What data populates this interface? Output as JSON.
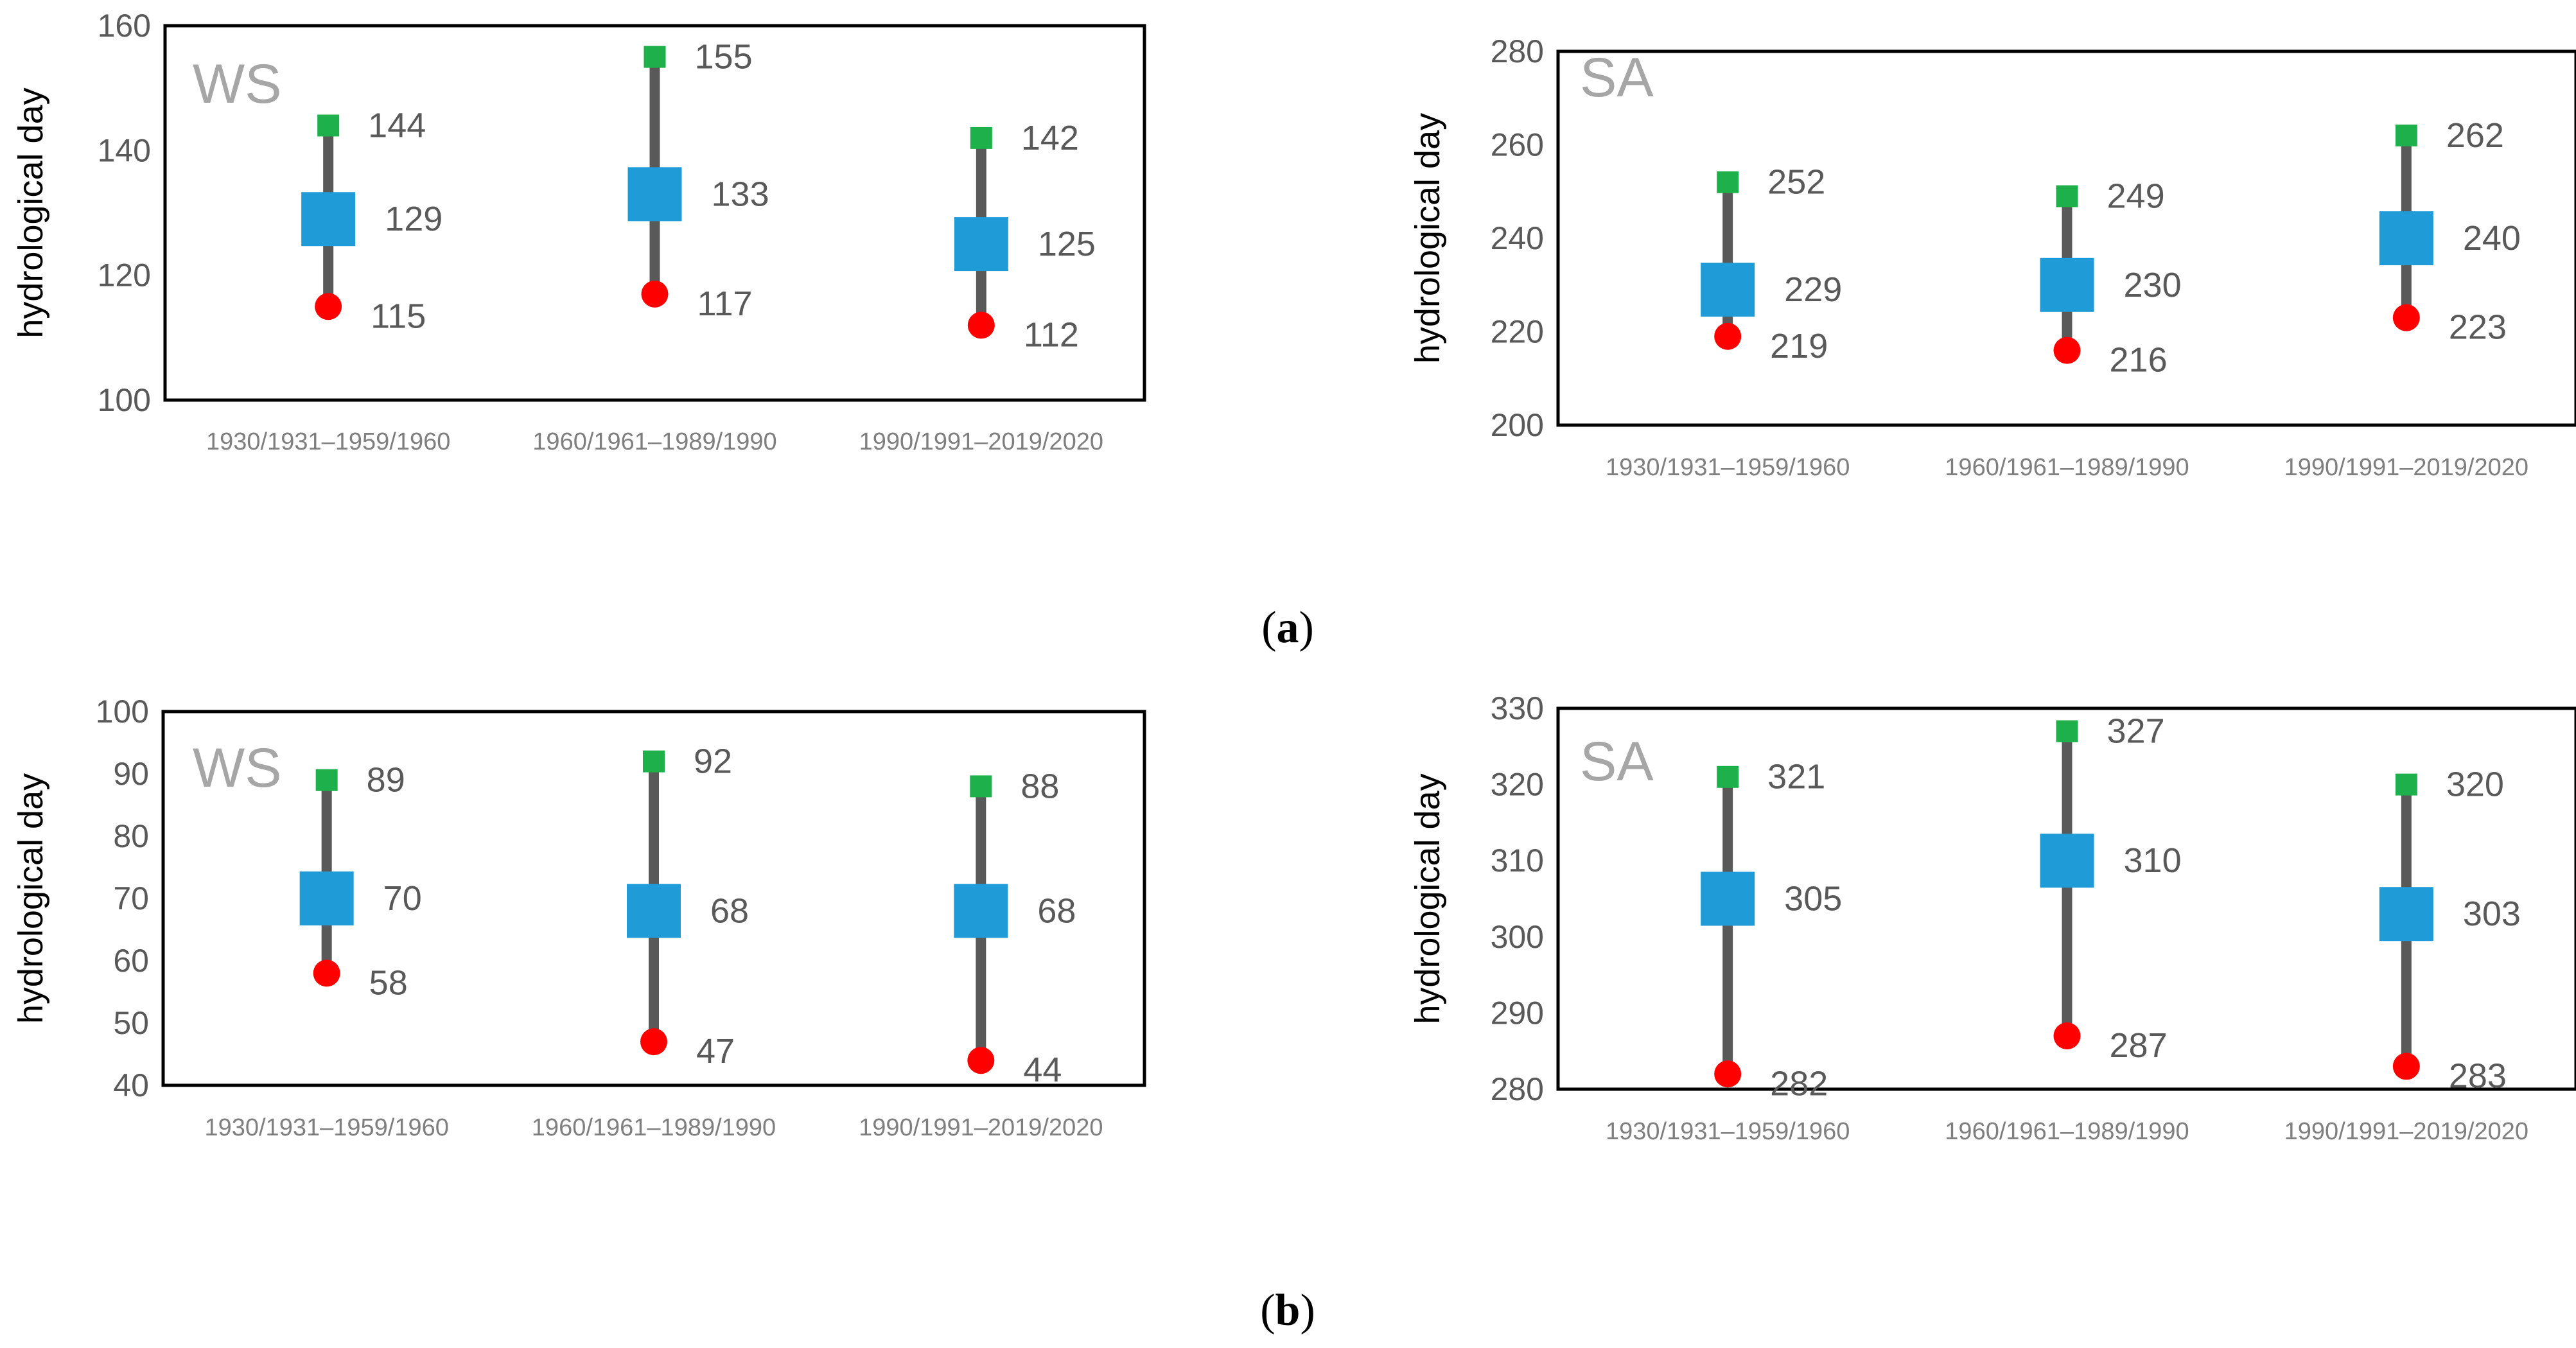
{
  "figure": {
    "captions": [
      {
        "open": "(",
        "letter": "a",
        "close": ")"
      },
      {
        "open": "(",
        "letter": "b",
        "close": ")"
      }
    ]
  },
  "legend_colors": {
    "max": "#1eb04a",
    "mean": "#1f9bd7",
    "min": "#ff0000",
    "range_line": "#595959"
  },
  "chart_data": [
    {
      "type": "range-marker",
      "panel_label": "WS",
      "ylabel": "hydrological day",
      "ylim": [
        100,
        160
      ],
      "yticks": [
        100,
        120,
        140,
        160
      ],
      "categories": [
        "1930/1931–1959/1960",
        "1960/1961–1989/1990",
        "1990/1991–2019/2020"
      ],
      "series": [
        {
          "name": "max",
          "values": [
            144,
            155,
            142
          ]
        },
        {
          "name": "mean",
          "values": [
            129,
            133,
            125
          ]
        },
        {
          "name": "min",
          "values": [
            115,
            117,
            112
          ]
        }
      ]
    },
    {
      "type": "range-marker",
      "panel_label": "SA",
      "ylabel": "hydrological day",
      "ylim": [
        200,
        280
      ],
      "yticks": [
        200,
        220,
        240,
        260,
        280
      ],
      "categories": [
        "1930/1931–1959/1960",
        "1960/1961–1989/1990",
        "1990/1991–2019/2020"
      ],
      "series": [
        {
          "name": "max",
          "values": [
            252,
            249,
            262
          ]
        },
        {
          "name": "mean",
          "values": [
            229,
            230,
            240
          ]
        },
        {
          "name": "min",
          "values": [
            219,
            216,
            223
          ]
        }
      ]
    },
    {
      "type": "range-marker",
      "panel_label": "WS",
      "ylabel": "hydrological day",
      "ylim": [
        40,
        100
      ],
      "yticks": [
        40,
        50,
        60,
        70,
        80,
        90,
        100
      ],
      "categories": [
        "1930/1931–1959/1960",
        "1960/1961–1989/1990",
        "1990/1991–2019/2020"
      ],
      "series": [
        {
          "name": "max",
          "values": [
            89,
            92,
            88
          ]
        },
        {
          "name": "mean",
          "values": [
            70,
            68,
            68
          ]
        },
        {
          "name": "min",
          "values": [
            58,
            47,
            44
          ]
        }
      ]
    },
    {
      "type": "range-marker",
      "panel_label": "SA",
      "ylabel": "hydrological day",
      "ylim": [
        280,
        330
      ],
      "yticks": [
        280,
        290,
        300,
        310,
        320,
        330
      ],
      "categories": [
        "1930/1931–1959/1960",
        "1960/1961–1989/1990",
        "1990/1991–2019/2020"
      ],
      "series": [
        {
          "name": "max",
          "values": [
            321,
            327,
            320
          ]
        },
        {
          "name": "mean",
          "values": [
            305,
            310,
            303
          ]
        },
        {
          "name": "min",
          "values": [
            282,
            287,
            283
          ]
        }
      ]
    }
  ]
}
